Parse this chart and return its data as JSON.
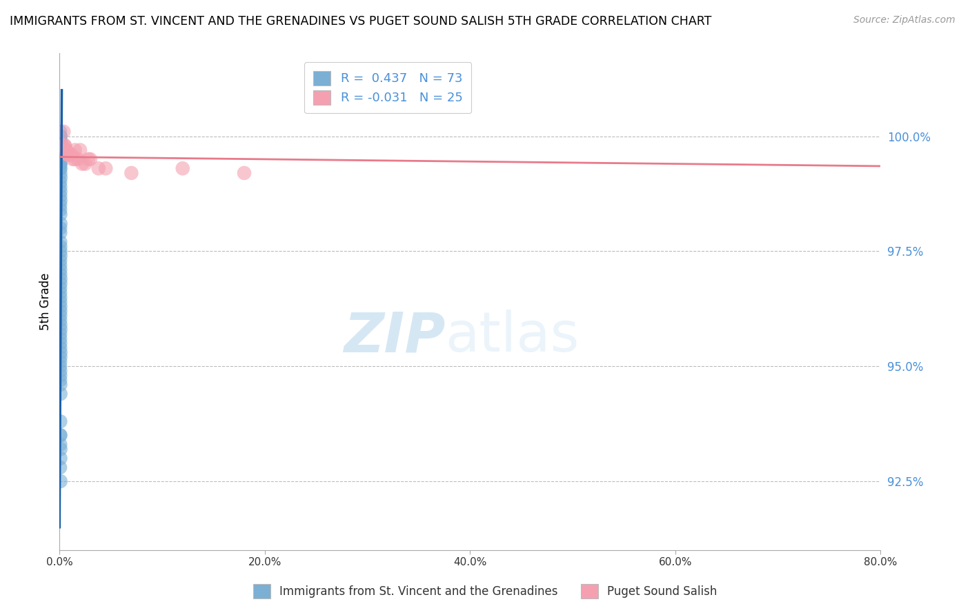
{
  "title": "IMMIGRANTS FROM ST. VINCENT AND THE GRENADINES VS PUGET SOUND SALISH 5TH GRADE CORRELATION CHART",
  "source": "Source: ZipAtlas.com",
  "ylabel": "5th Grade",
  "xlim": [
    0.0,
    80.0
  ],
  "ylim": [
    91.0,
    101.8
  ],
  "yticks": [
    92.5,
    95.0,
    97.5,
    100.0
  ],
  "ytick_labels": [
    "92.5%",
    "95.0%",
    "97.5%",
    "100.0%"
  ],
  "xticks": [
    0,
    20,
    40,
    60,
    80
  ],
  "xtick_labels": [
    "0.0%",
    "20.0%",
    "40.0%",
    "60.0%",
    "80.0%"
  ],
  "blue_R": 0.437,
  "blue_N": 73,
  "pink_R": -0.031,
  "pink_N": 25,
  "blue_color": "#7bafd4",
  "pink_color": "#f4a0b0",
  "blue_line_color": "#1a5fa8",
  "pink_line_color": "#e87a8a",
  "watermark_zip": "ZIP",
  "watermark_atlas": "atlas",
  "legend_label_blue": "Immigrants from St. Vincent and the Grenadines",
  "legend_label_pink": "Puget Sound Salish",
  "blue_x": [
    0.05,
    0.08,
    0.1,
    0.06,
    0.07,
    0.09,
    0.05,
    0.08,
    0.06,
    0.07,
    0.09,
    0.05,
    0.07,
    0.08,
    0.06,
    0.1,
    0.07,
    0.06,
    0.08,
    0.09,
    0.07,
    0.06,
    0.08,
    0.07,
    0.09,
    0.06,
    0.07,
    0.08,
    0.06,
    0.09,
    0.07,
    0.06,
    0.08,
    0.07,
    0.06,
    0.08,
    0.07,
    0.06,
    0.09,
    0.07,
    0.06,
    0.08,
    0.07,
    0.06,
    0.08,
    0.09,
    0.07,
    0.06,
    0.08,
    0.07,
    0.06,
    0.08,
    0.07,
    0.05,
    0.09,
    0.07,
    0.06,
    0.08,
    0.07,
    0.09,
    0.06,
    0.08,
    0.07,
    0.09,
    0.06,
    0.08,
    0.07,
    0.05,
    0.09,
    0.07,
    0.06,
    0.08,
    0.07
  ],
  "blue_y": [
    100.1,
    100.0,
    99.9,
    100.0,
    99.8,
    99.7,
    99.9,
    99.6,
    99.8,
    99.5,
    99.4,
    99.6,
    99.3,
    99.2,
    99.4,
    99.1,
    99.3,
    99.0,
    98.8,
    98.6,
    98.9,
    98.5,
    98.3,
    98.7,
    98.1,
    98.4,
    97.9,
    97.6,
    98.0,
    97.4,
    97.7,
    97.2,
    97.5,
    97.0,
    97.3,
    96.8,
    97.1,
    96.6,
    96.9,
    96.4,
    96.7,
    96.2,
    96.5,
    96.0,
    96.3,
    95.8,
    96.1,
    95.6,
    95.9,
    95.4,
    95.7,
    95.2,
    95.5,
    95.0,
    95.3,
    94.8,
    95.1,
    94.6,
    94.9,
    94.4,
    94.7,
    93.5,
    93.8,
    93.2,
    93.5,
    93.0,
    93.3,
    92.8,
    92.5,
    100.0,
    99.8,
    99.6,
    99.4
  ],
  "pink_x": [
    0.3,
    1.5,
    3.0,
    0.8,
    2.0,
    0.5,
    1.2,
    0.4,
    2.8,
    4.5,
    7.0,
    12.0,
    18.0,
    0.9,
    1.8,
    0.6,
    2.5,
    3.8,
    1.0,
    0.7,
    1.5,
    0.5,
    2.2,
    0.8,
    1.3
  ],
  "pink_y": [
    99.8,
    99.7,
    99.5,
    99.6,
    99.7,
    99.8,
    99.6,
    100.1,
    99.5,
    99.3,
    99.2,
    99.3,
    99.2,
    99.6,
    99.5,
    99.7,
    99.4,
    99.3,
    99.6,
    99.7,
    99.5,
    99.8,
    99.4,
    99.6,
    99.5
  ],
  "blue_trend_x": [
    0.0,
    0.22
  ],
  "blue_trend_y": [
    91.5,
    101.0
  ],
  "pink_trend_x": [
    0.0,
    80.0
  ],
  "pink_trend_y": [
    99.55,
    99.35
  ]
}
